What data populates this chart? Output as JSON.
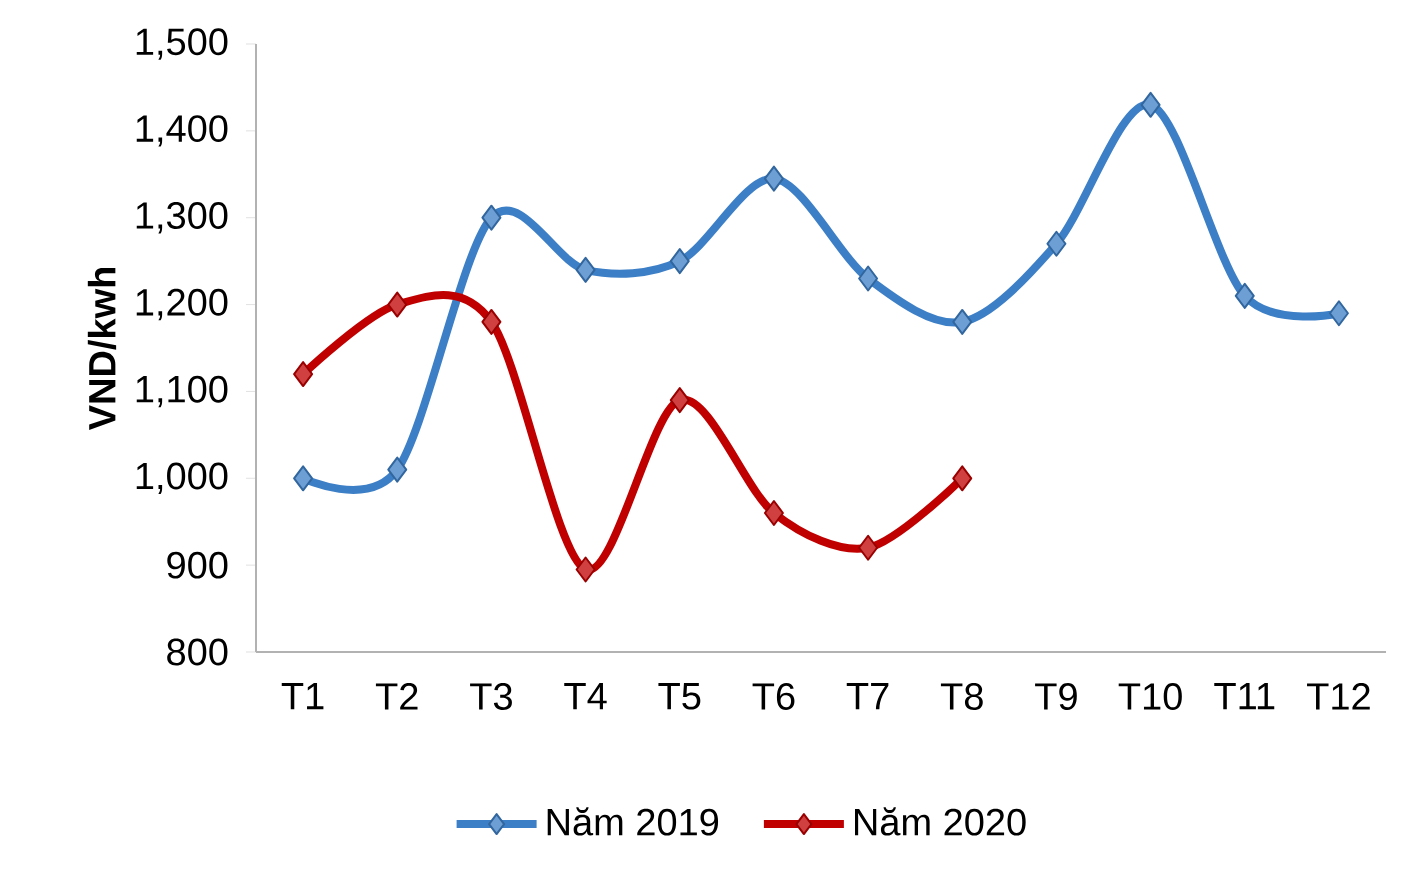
{
  "chart_data": {
    "type": "line",
    "ylabel": "VND/kwh",
    "categories": [
      "T1",
      "T2",
      "T3",
      "T4",
      "T5",
      "T6",
      "T7",
      "T8",
      "T9",
      "T10",
      "T11",
      "T12"
    ],
    "series": [
      {
        "name": "Năm 2019",
        "color": "#3d7fc6",
        "values": [
          1000,
          1010,
          1300,
          1240,
          1250,
          1345,
          1230,
          1180,
          1270,
          1430,
          1210,
          1190
        ]
      },
      {
        "name": "Năm 2020",
        "color": "#c00000",
        "values": [
          1120,
          1200,
          1180,
          895,
          1090,
          960,
          920,
          1000,
          null,
          null,
          null,
          null
        ]
      }
    ],
    "ylim": [
      800,
      1500
    ],
    "yticks": [
      800,
      900,
      {
        "value": 1000,
        "label": "1,000"
      },
      {
        "value": 1100,
        "label": "1,100"
      },
      {
        "value": 1200,
        "label": "1,200"
      },
      {
        "value": 1300,
        "label": "1,300"
      },
      {
        "value": 1400,
        "label": "1,400"
      },
      {
        "value": 1500,
        "label": "1,500"
      }
    ],
    "legend": "bottom",
    "marker": "diamond",
    "line_style": "solid",
    "grid": false
  }
}
